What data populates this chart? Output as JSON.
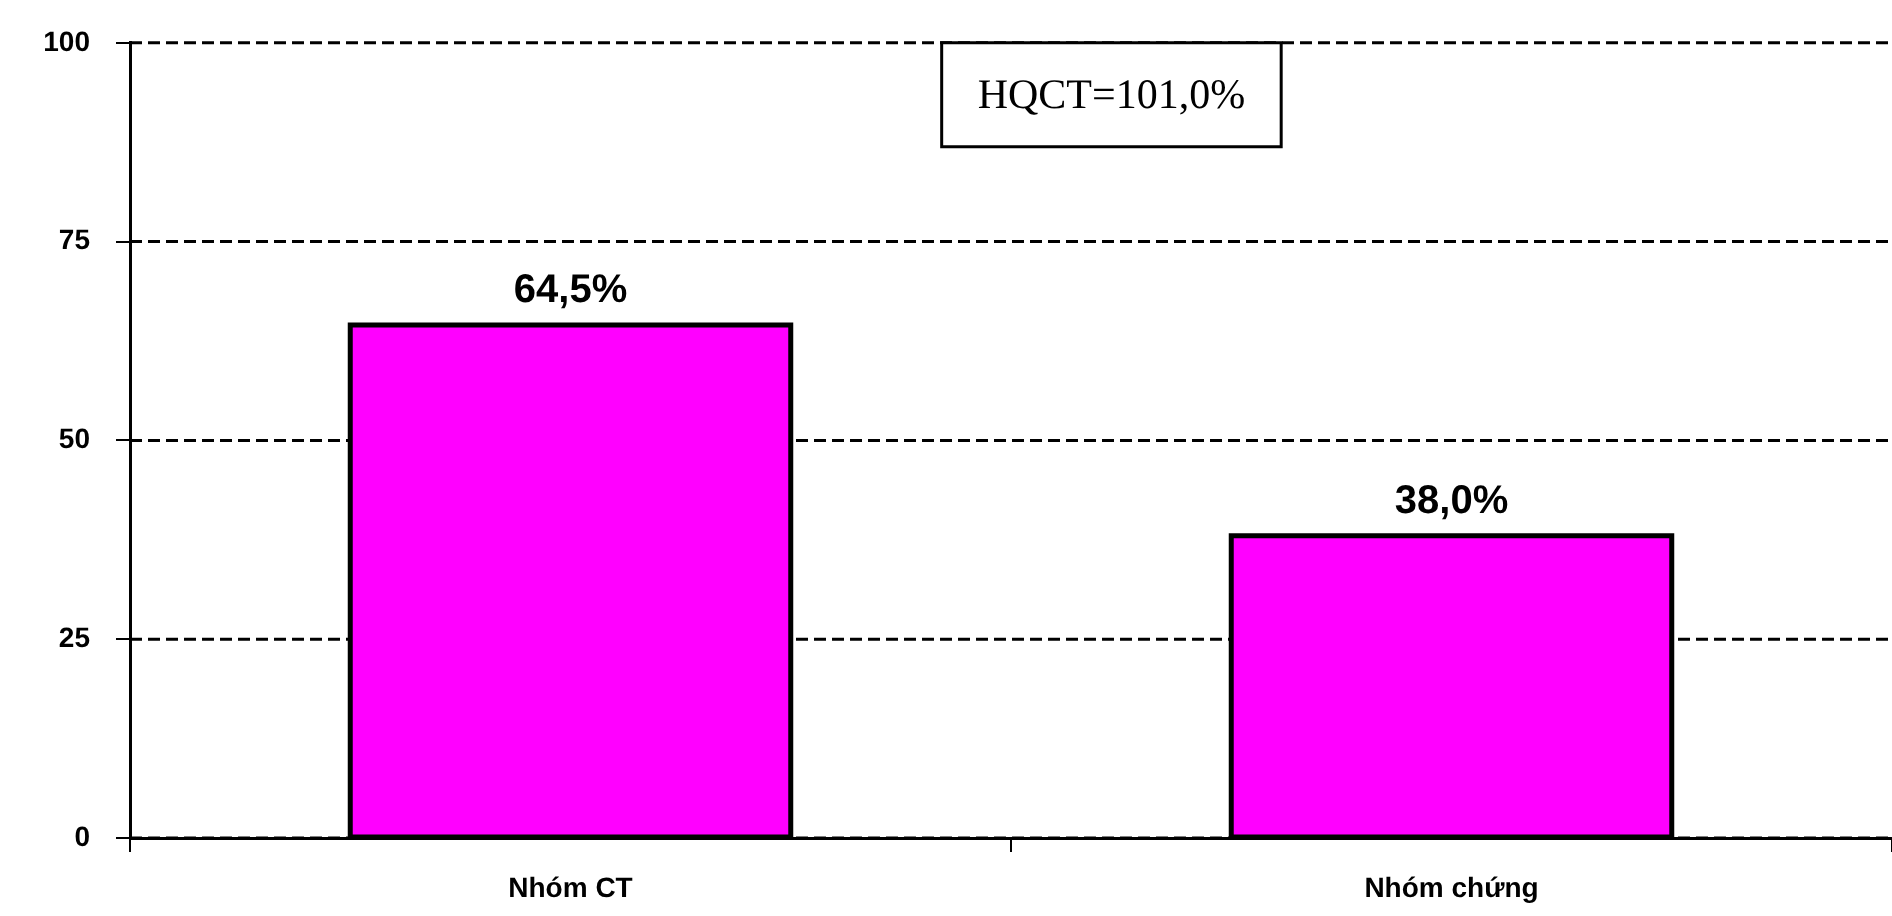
{
  "chart_data": {
    "type": "bar",
    "categories": [
      "Nhóm CT",
      "Nhóm chứng"
    ],
    "values": [
      64.5,
      38.0
    ],
    "color": "#ff00ff",
    "value_labels": [
      "64,5%",
      "38,0%"
    ],
    "ylim": [
      0,
      100
    ],
    "yticks": [
      0,
      25,
      50,
      75,
      100
    ],
    "grid": "y",
    "annotations": [
      "HQCT=101,0%"
    ]
  }
}
